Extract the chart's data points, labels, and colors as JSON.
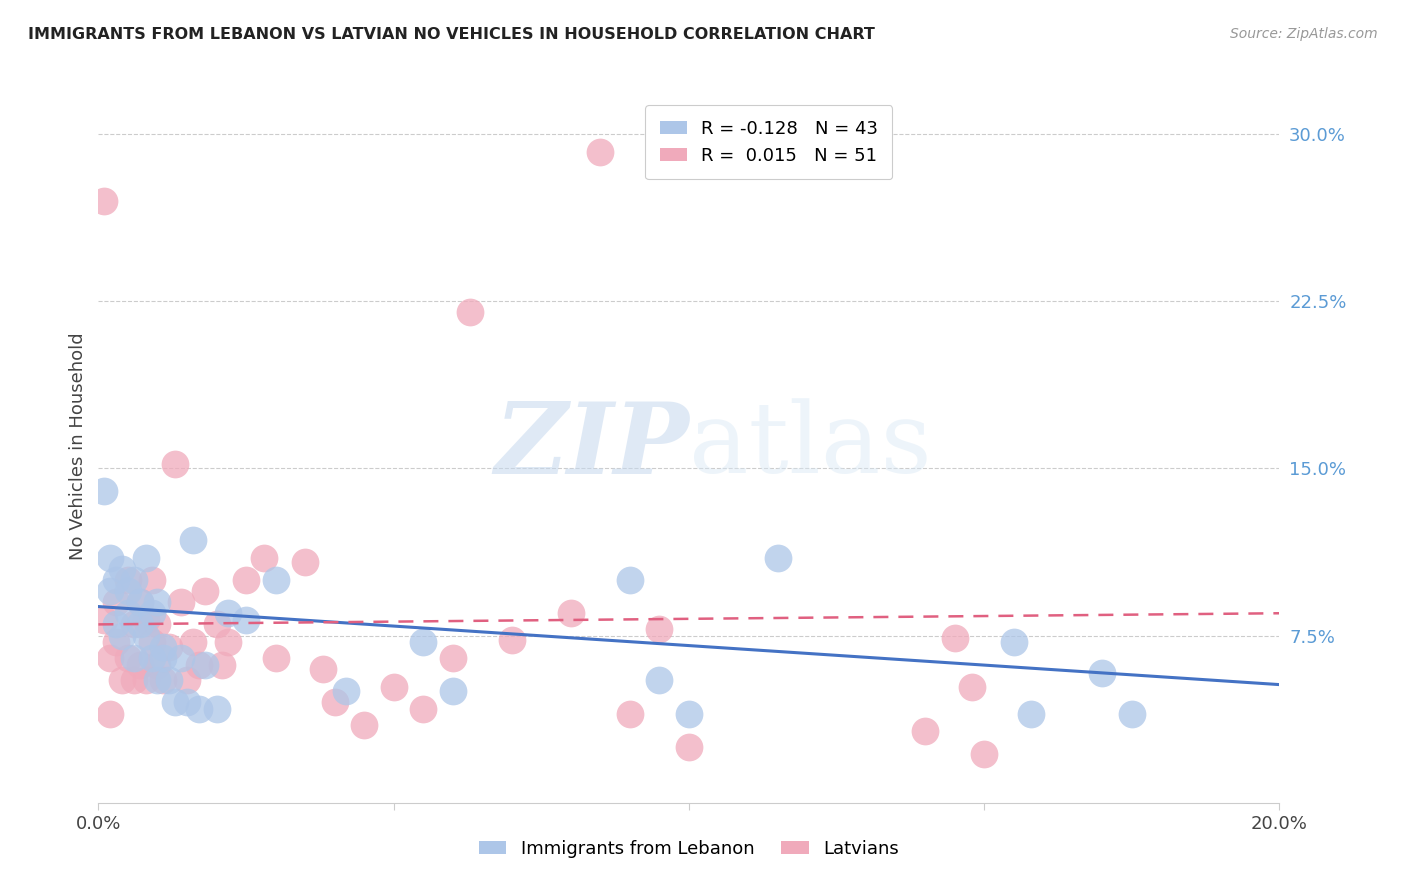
{
  "title": "IMMIGRANTS FROM LEBANON VS LATVIAN NO VEHICLES IN HOUSEHOLD CORRELATION CHART",
  "source": "Source: ZipAtlas.com",
  "ylabel": "No Vehicles in Household",
  "x_min": 0.0,
  "x_max": 0.2,
  "y_min": 0.0,
  "y_max": 0.32,
  "yticks": [
    0.075,
    0.15,
    0.225,
    0.3
  ],
  "ytick_labels": [
    "7.5%",
    "15.0%",
    "22.5%",
    "30.0%"
  ],
  "xticks": [
    0.0,
    0.05,
    0.1,
    0.15,
    0.2
  ],
  "xtick_labels": [
    "0.0%",
    "",
    "",
    "",
    "20.0%"
  ],
  "blue_color": "#adc6e8",
  "pink_color": "#f0aabb",
  "blue_line_color": "#4472c4",
  "pink_line_color": "#e06080",
  "watermark_zip": "ZIP",
  "watermark_atlas": "atlas",
  "blue_R": -0.128,
  "blue_N": 43,
  "pink_R": 0.015,
  "pink_N": 51,
  "blue_trend_x": [
    0.0,
    0.2
  ],
  "blue_trend_y": [
    0.088,
    0.053
  ],
  "pink_trend_x": [
    0.0,
    0.2
  ],
  "pink_trend_y": [
    0.08,
    0.085
  ],
  "blue_scatter_x": [
    0.001,
    0.002,
    0.002,
    0.003,
    0.003,
    0.004,
    0.004,
    0.005,
    0.005,
    0.006,
    0.006,
    0.007,
    0.007,
    0.008,
    0.008,
    0.009,
    0.009,
    0.01,
    0.01,
    0.011,
    0.011,
    0.012,
    0.013,
    0.014,
    0.015,
    0.016,
    0.017,
    0.018,
    0.02,
    0.022,
    0.025,
    0.03,
    0.042,
    0.055,
    0.06,
    0.09,
    0.095,
    0.1,
    0.115,
    0.155,
    0.158,
    0.17,
    0.175
  ],
  "blue_scatter_y": [
    0.14,
    0.095,
    0.11,
    0.08,
    0.1,
    0.075,
    0.105,
    0.085,
    0.095,
    0.065,
    0.1,
    0.08,
    0.09,
    0.075,
    0.11,
    0.065,
    0.085,
    0.055,
    0.09,
    0.065,
    0.07,
    0.055,
    0.045,
    0.065,
    0.045,
    0.118,
    0.042,
    0.062,
    0.042,
    0.085,
    0.082,
    0.1,
    0.05,
    0.072,
    0.05,
    0.1,
    0.055,
    0.04,
    0.11,
    0.072,
    0.04,
    0.058,
    0.04
  ],
  "pink_scatter_x": [
    0.001,
    0.001,
    0.002,
    0.002,
    0.003,
    0.003,
    0.004,
    0.005,
    0.005,
    0.006,
    0.006,
    0.007,
    0.007,
    0.008,
    0.008,
    0.009,
    0.009,
    0.01,
    0.01,
    0.011,
    0.012,
    0.013,
    0.014,
    0.015,
    0.016,
    0.017,
    0.018,
    0.02,
    0.021,
    0.022,
    0.025,
    0.028,
    0.03,
    0.035,
    0.038,
    0.04,
    0.045,
    0.05,
    0.055,
    0.06,
    0.063,
    0.07,
    0.08,
    0.085,
    0.09,
    0.095,
    0.1,
    0.14,
    0.145,
    0.148,
    0.15
  ],
  "pink_scatter_y": [
    0.27,
    0.082,
    0.04,
    0.065,
    0.09,
    0.072,
    0.055,
    0.1,
    0.065,
    0.08,
    0.055,
    0.09,
    0.062,
    0.055,
    0.082,
    0.1,
    0.072,
    0.062,
    0.08,
    0.055,
    0.07,
    0.152,
    0.09,
    0.055,
    0.072,
    0.062,
    0.095,
    0.08,
    0.062,
    0.072,
    0.1,
    0.11,
    0.065,
    0.108,
    0.06,
    0.045,
    0.035,
    0.052,
    0.042,
    0.065,
    0.22,
    0.073,
    0.085,
    0.292,
    0.04,
    0.078,
    0.025,
    0.032,
    0.074,
    0.052,
    0.022
  ]
}
